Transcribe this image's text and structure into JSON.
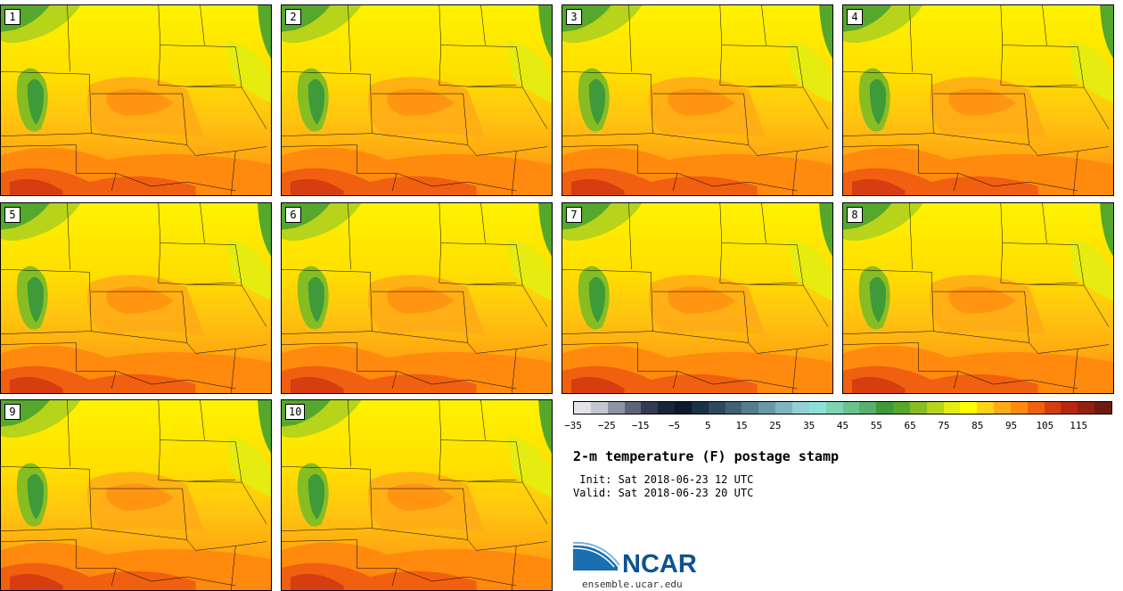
{
  "panels": [
    {
      "label": "1"
    },
    {
      "label": "2"
    },
    {
      "label": "3"
    },
    {
      "label": "4"
    },
    {
      "label": "5"
    },
    {
      "label": "6"
    },
    {
      "label": "7"
    },
    {
      "label": "8"
    },
    {
      "label": "9"
    },
    {
      "label": "10"
    }
  ],
  "colorbar": {
    "colors": [
      "#e2e4ea",
      "#c4c7d1",
      "#8e93a5",
      "#5e6479",
      "#333a52",
      "#1a2338",
      "#0d1a2e",
      "#1c3046",
      "#2e4860",
      "#416178",
      "#567c92",
      "#6a98aa",
      "#7fb4c2",
      "#93d0d6",
      "#8ce1d3",
      "#7fd3b0",
      "#6cc28f",
      "#57b06d",
      "#3f9a3a",
      "#55a82c",
      "#86bd22",
      "#b7d41a",
      "#e6ec10",
      "#ffff00",
      "#ffd21a",
      "#ffaa16",
      "#ff8a0e",
      "#f06010",
      "#d63d10",
      "#b82810",
      "#96200f",
      "#6f1a0e"
    ],
    "ticks": [
      "−35",
      "−25",
      "−15",
      "−5",
      "5",
      "15",
      "25",
      "35",
      "45",
      "55",
      "65",
      "75",
      "85",
      "95",
      "105",
      "115"
    ]
  },
  "title": "2-m temperature (F) postage stamp",
  "init_line": " Init: Sat 2018-06-23 12 UTC",
  "valid_line": "Valid: Sat 2018-06-23 20 UTC",
  "logo": {
    "text": "NCAR",
    "url": "ensemble.ucar.edu"
  }
}
